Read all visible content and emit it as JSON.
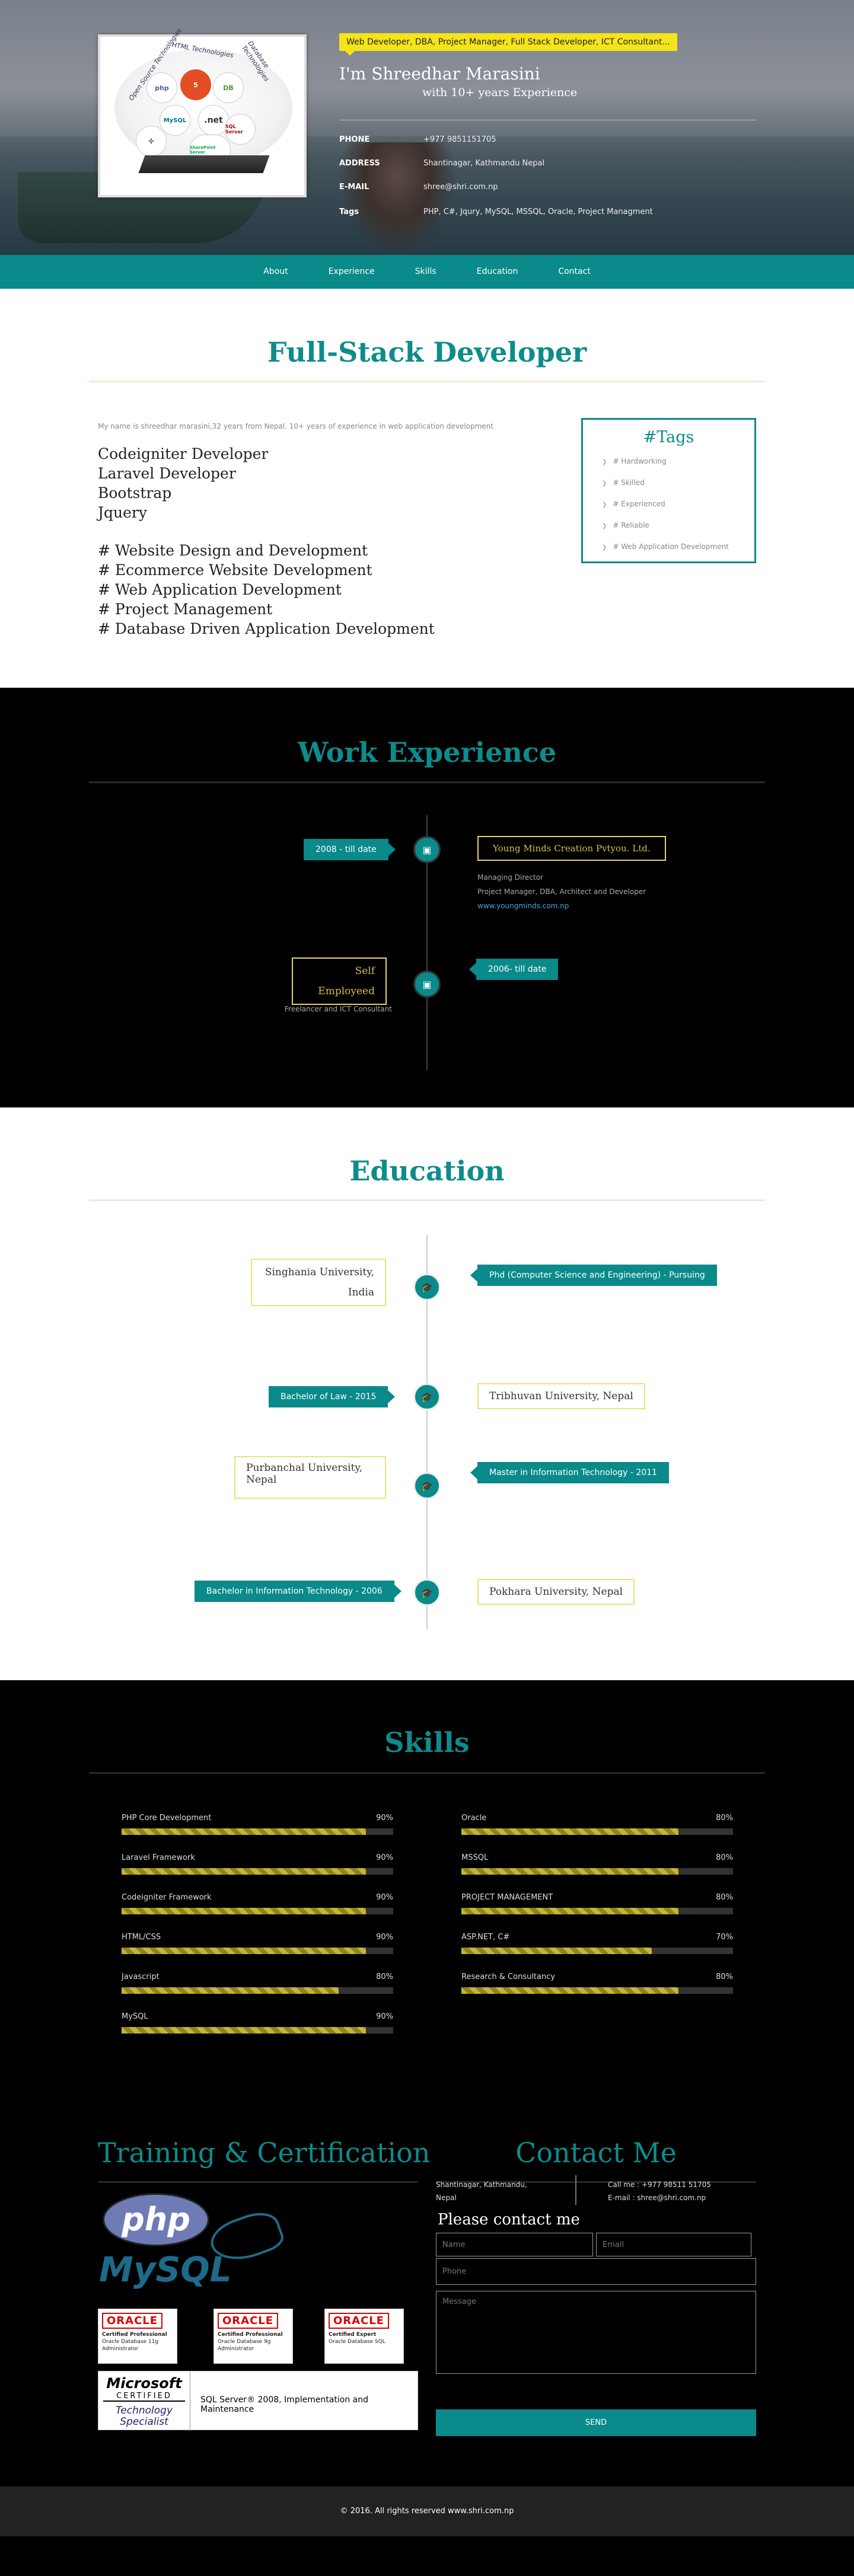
{
  "hero": {
    "badge": "Web Developer, DBA, Project Manager, Full Stack Developer, ICT Consultant...",
    "name": "I'm Shreedhar Marasini",
    "experience": "with 10+ years Experience",
    "logo_labels": {
      "arc1": "Open Source Technologies",
      "arc2": "HTML Technologies",
      "arc3": "Database Technologies",
      "php": "php",
      "html5": "5",
      "mysql": "MySQL",
      "net": ".net",
      "sqlserver": "SQL Server",
      "sharepoint": "SharePoint Server"
    },
    "info": [
      {
        "key": "PHONE",
        "value": "+977 9851151705"
      },
      {
        "key": "ADDRESS",
        "value": "Shantinagar, Kathmandu Nepal"
      },
      {
        "key": "E-MAIL",
        "value": "shree@shri.com.np"
      },
      {
        "key": "Tags",
        "value": "PHP, C#, Jqury, MySQL, MSSQL, Oracle, Project Managment"
      }
    ]
  },
  "nav": [
    "About",
    "Experience",
    "Skills",
    "Education",
    "Contact"
  ],
  "about": {
    "title": "Full-Stack Developer",
    "intro": "My name is shreedhar marasini,32 years from Nepal. 10+ years of experience in web application development",
    "skills": [
      "Codeigniter Developer",
      "Laravel Developer",
      "Bootstrap",
      "Jquery"
    ],
    "services": [
      "# Website Design and Development",
      "# Ecommerce Website Development",
      "# Web Application Development",
      "# Project Management",
      "# Database Driven Application Development"
    ],
    "tags_title": "#Tags",
    "tags": [
      "# Hardworking",
      "# Skilled",
      "# Experienced",
      "# Reliable",
      "# Web Application Development"
    ]
  },
  "experience": {
    "title": "Work Experience",
    "items": [
      {
        "date": "2008 - till date",
        "company": "Young Minds Creation Pvtyou. Ltd.",
        "role": "Managing Director",
        "detail": "Project Manager, DBA, Architect and Developer",
        "link": "www.youngminds.com.np"
      },
      {
        "date": "2006- till date",
        "company_line1": "Self",
        "company_line2": "Employeed",
        "detail": "Freelancer and ICT Consultant"
      }
    ]
  },
  "education": {
    "title": "Education",
    "items": [
      {
        "degree": "Phd (Computer Science and Engineering) - Pursuing",
        "school_line1": "Singhania University,",
        "school_line2": "India"
      },
      {
        "degree": "Bachelor of Law - 2015",
        "school": "Tribhuvan University, Nepal"
      },
      {
        "degree": "Master in Information Technology - 2011",
        "school": "Purbanchal University, Nepal"
      },
      {
        "degree": "Bachelor in Information Technology - 2006",
        "school": "Pokhara University, Nepal"
      }
    ]
  },
  "skills": {
    "title": "Skills",
    "left": [
      {
        "name": "PHP Core Development",
        "pct": "90%",
        "value": 90
      },
      {
        "name": "Laravel Framework",
        "pct": "90%",
        "value": 90
      },
      {
        "name": "Codeigniter Framework",
        "pct": "90%",
        "value": 90
      },
      {
        "name": "HTML/CSS",
        "pct": "90%",
        "value": 90
      },
      {
        "name": "Javascript",
        "pct": "80%",
        "value": 80
      },
      {
        "name": "MySQL",
        "pct": "90%",
        "value": 90
      }
    ],
    "right": [
      {
        "name": "Oracle",
        "pct": "80%",
        "value": 80
      },
      {
        "name": "MSSQL",
        "pct": "80%",
        "value": 80
      },
      {
        "name": "PROJECT MANAGEMENT",
        "pct": "80%",
        "value": 80
      },
      {
        "name": "ASP.NET, C#",
        "pct": "70%",
        "value": 70
      },
      {
        "name": "Research & Consultancy",
        "pct": "80%",
        "value": 80
      }
    ]
  },
  "training": {
    "title": "Training & Certification",
    "php_logo": "php",
    "mysql_logo": "MySQL",
    "oracle": [
      {
        "brand": "ORACLE",
        "line1": "Certified Professional",
        "line2": "Oracle Database 11g",
        "line3": "Administrator"
      },
      {
        "brand": "ORACLE",
        "line1": "Certified Professional",
        "line2": "Oracle Database 9g",
        "line3": "Administrator"
      },
      {
        "brand": "ORACLE",
        "line1": "Certified Expert",
        "line2": "Oracle Database SQL",
        "line3": ""
      }
    ],
    "ms_brand": "Microsoft",
    "ms_certified": "CERTIFIED",
    "ms_spec1": "Technology",
    "ms_spec2": "Specialist",
    "ms_text": "SQL Server® 2008, Implementation and Maintenance"
  },
  "contact": {
    "title": "Contact Me",
    "addr1": "Shantinagar, Kathmandu,",
    "addr2": "Nepal",
    "phone": "Call me : +977 98511 51705",
    "email": "E-mail : shree@shri.com.np",
    "form_title": "Please contact me",
    "name_ph": "Name",
    "email_ph": "Email",
    "phone_ph": "Phone",
    "message_ph": "Message",
    "send": "SEND"
  },
  "footer": "© 2016. All rights reserved www.shri.com.np",
  "colors": {
    "teal": "#0a8a8a",
    "yellow": "#f5e41a",
    "gold": "#c5b632"
  }
}
